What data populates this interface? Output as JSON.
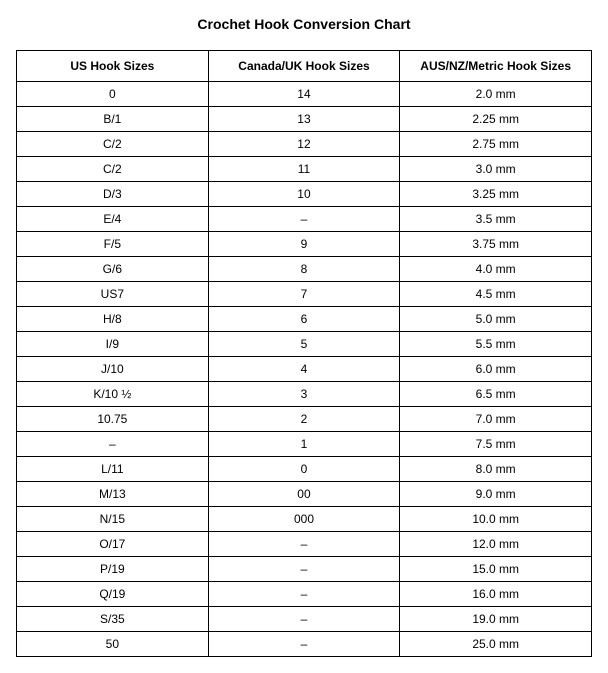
{
  "title": "Crochet Hook Conversion Chart",
  "table": {
    "columns": [
      "US Hook Sizes",
      "Canada/UK Hook Sizes",
      "AUS/NZ/Metric Hook Sizes"
    ],
    "rows": [
      [
        "0",
        "14",
        "2.0 mm"
      ],
      [
        "B/1",
        "13",
        "2.25 mm"
      ],
      [
        "C/2",
        "12",
        "2.75 mm"
      ],
      [
        "C/2",
        "11",
        "3.0 mm"
      ],
      [
        "D/3",
        "10",
        "3.25 mm"
      ],
      [
        "E/4",
        "–",
        "3.5 mm"
      ],
      [
        "F/5",
        "9",
        "3.75 mm"
      ],
      [
        "G/6",
        "8",
        "4.0 mm"
      ],
      [
        "US7",
        "7",
        "4.5 mm"
      ],
      [
        "H/8",
        "6",
        "5.0 mm"
      ],
      [
        "I/9",
        "5",
        "5.5 mm"
      ],
      [
        "J/10",
        "4",
        "6.0 mm"
      ],
      [
        "K/10 ½",
        "3",
        "6.5 mm"
      ],
      [
        "10.75",
        "2",
        "7.0 mm"
      ],
      [
        "–",
        "1",
        "7.5 mm"
      ],
      [
        "L/11",
        "0",
        "8.0 mm"
      ],
      [
        "M/13",
        "00",
        "9.0 mm"
      ],
      [
        "N/15",
        "000",
        "10.0 mm"
      ],
      [
        "O/17",
        "–",
        "12.0 mm"
      ],
      [
        "P/19",
        "–",
        "15.0 mm"
      ],
      [
        "Q/19",
        "–",
        "16.0 mm"
      ],
      [
        "S/35",
        "–",
        "19.0 mm"
      ],
      [
        "50",
        "–",
        "25.0 mm"
      ]
    ]
  }
}
